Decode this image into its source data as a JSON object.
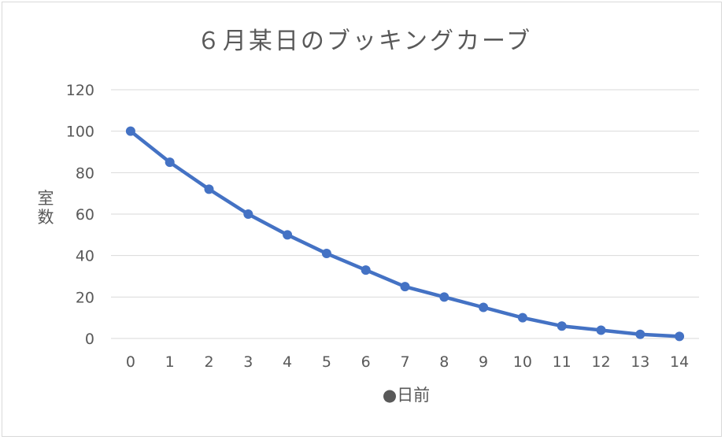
{
  "chart_data": {
    "type": "line",
    "title": "６月某日のブッキングカーブ",
    "xlabel": "●日前",
    "ylabel": "室数",
    "x": [
      0,
      1,
      2,
      3,
      4,
      5,
      6,
      7,
      8,
      9,
      10,
      11,
      12,
      13,
      14
    ],
    "series": [
      {
        "values": [
          100,
          85,
          72,
          60,
          50,
          41,
          33,
          25,
          20,
          15,
          10,
          6,
          4,
          2,
          1
        ]
      }
    ],
    "ylim": [
      0,
      120
    ],
    "yticks": [
      0,
      20,
      40,
      60,
      80,
      100,
      120
    ],
    "grid": true,
    "legend": false,
    "line_color": "#4472c4"
  }
}
